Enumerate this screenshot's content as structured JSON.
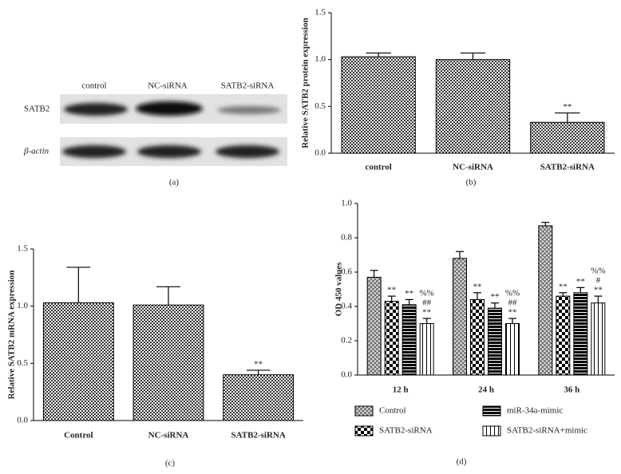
{
  "blot": {
    "lanes": [
      "control",
      "NC-siRNA",
      "SATB2-siRNA"
    ],
    "rows": [
      "SATB2",
      "β-actin"
    ],
    "panel_label": "(a)"
  },
  "chart_data": [
    {
      "type": "bar",
      "panel_label": "(b)",
      "ylabel": "Relative SATB2 protein expression",
      "categories": [
        "control",
        "NC-siRNA",
        "SATB2-siRNA"
      ],
      "values": [
        1.03,
        1.0,
        0.33
      ],
      "errors": [
        0.04,
        0.07,
        0.1
      ],
      "significance": [
        [],
        [],
        [
          "**"
        ]
      ],
      "pattern": "fine-check",
      "ylim": [
        0,
        1.5
      ],
      "yticks": [
        {
          "value": 0,
          "label": "0.0"
        },
        {
          "value": 0.5,
          "label": "0.5"
        },
        {
          "value": 1,
          "label": "1.0"
        },
        {
          "value": 1.5,
          "label": "1.5"
        }
      ]
    },
    {
      "type": "bar",
      "panel_label": "(c)",
      "ylabel": "Relative SATB2 mRNA expression",
      "categories": [
        "Control",
        "NC-siRNA",
        "SATB2-siRNA"
      ],
      "values": [
        1.03,
        1.01,
        0.4
      ],
      "errors": [
        0.31,
        0.16,
        0.04
      ],
      "significance": [
        [],
        [],
        [
          "**"
        ]
      ],
      "pattern": "fine-check",
      "ylim": [
        0,
        1.5
      ],
      "yticks": [
        {
          "value": 0,
          "label": "0.0"
        },
        {
          "value": 0.5,
          "label": "0.5"
        },
        {
          "value": 1,
          "label": "1.0"
        },
        {
          "value": 1.5,
          "label": "1.5"
        }
      ]
    },
    {
      "type": "grouped-bar",
      "panel_label": "(d)",
      "ylabel": "OD 450 values",
      "categories": [
        "12 h",
        "24 h",
        "36 h"
      ],
      "series": [
        {
          "name": "Control",
          "pattern": "crosshatch",
          "values": [
            0.57,
            0.68,
            0.87
          ],
          "errors": [
            0.04,
            0.04,
            0.02
          ],
          "significance": [
            [],
            [],
            []
          ]
        },
        {
          "name": "SATB2-siRNA",
          "pattern": "checker",
          "values": [
            0.43,
            0.44,
            0.46
          ],
          "errors": [
            0.03,
            0.04,
            0.02
          ],
          "significance": [
            [
              "**"
            ],
            [
              "**"
            ],
            [
              "**"
            ]
          ]
        },
        {
          "name": "miR-34a-mimic",
          "pattern": "hstripes",
          "values": [
            0.41,
            0.39,
            0.48
          ],
          "errors": [
            0.03,
            0.03,
            0.03
          ],
          "significance": [
            [
              "**"
            ],
            [
              "**"
            ],
            [
              "**"
            ]
          ]
        },
        {
          "name": "SATB2-siRNA+mimic",
          "pattern": "vstripes",
          "values": [
            0.3,
            0.3,
            0.42
          ],
          "errors": [
            0.03,
            0.03,
            0.04
          ],
          "significance": [
            [
              "%%",
              "##",
              "**"
            ],
            [
              "%%",
              "##",
              "**"
            ],
            [
              "%%",
              "#",
              "**"
            ]
          ]
        }
      ],
      "ylim": [
        0,
        1
      ],
      "yticks": [
        {
          "value": 0,
          "label": "0.0"
        },
        {
          "value": 0.2,
          "label": "0.2"
        },
        {
          "value": 0.4,
          "label": "0.4"
        },
        {
          "value": 0.6,
          "label": "0.6"
        },
        {
          "value": 0.8,
          "label": "0.8"
        },
        {
          "value": 1,
          "label": "1.0"
        }
      ]
    }
  ]
}
